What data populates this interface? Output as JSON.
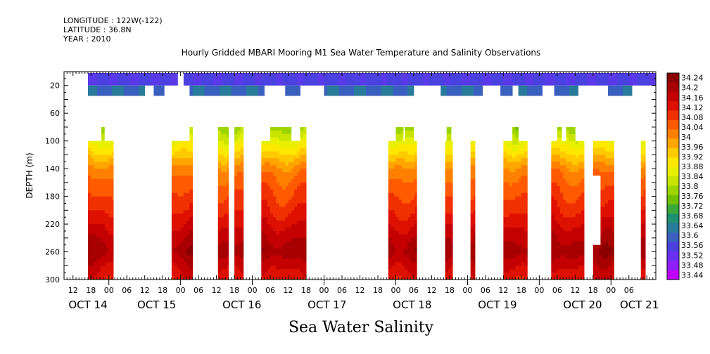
{
  "header": {
    "longitude": "LONGITUDE : 122W(-122)",
    "latitude": "LATITUDE : 36.8N",
    "year": "YEAR : 2010"
  },
  "chart_data": {
    "type": "heatmap",
    "title": "Hourly Gridded MBARI Mooring M1 Sea Water Temperature and Salinity Observations",
    "bottom_title": "Sea Water Salinity",
    "ylabel": "DEPTH (m)",
    "ylim": [
      300,
      0
    ],
    "xlim_hours": [
      0,
      198
    ],
    "y_ticks": [
      "20",
      "60",
      "100",
      "140",
      "180",
      "220",
      "260",
      "300"
    ],
    "y_tick_values": [
      20,
      60,
      100,
      140,
      180,
      220,
      260,
      300
    ],
    "x_hour_labels": [
      "12",
      "18",
      "00",
      "06",
      "12",
      "18",
      "00",
      "06",
      "12",
      "18",
      "00",
      "06",
      "12",
      "18",
      "00",
      "06",
      "12",
      "18",
      "00",
      "06",
      "12",
      "18",
      "00",
      "06",
      "12",
      "18",
      "00",
      "06",
      "12",
      "18",
      "00",
      "06"
    ],
    "x_hour_label_hours": [
      3,
      9,
      15,
      21,
      27,
      33,
      39,
      45,
      51,
      57,
      63,
      69,
      75,
      81,
      87,
      93,
      99,
      105,
      111,
      117,
      123,
      129,
      135,
      141,
      147,
      153,
      159,
      165,
      171,
      177,
      183,
      189
    ],
    "x_day_labels": [
      "OCT 14",
      "OCT 15",
      "OCT 16",
      "OCT 17",
      "OCT 18",
      "OCT 19",
      "OCT 20",
      "OCT 21"
    ],
    "x_day_label_hours": [
      8,
      31,
      59.5,
      88,
      116.5,
      145,
      173.5,
      192.5
    ],
    "colorbar": {
      "levels": [
        "34.24",
        "34.2",
        "34.16",
        "34.12",
        "34.08",
        "34.04",
        "34",
        "33.96",
        "33.92",
        "33.88",
        "33.84",
        "33.8",
        "33.76",
        "33.72",
        "33.68",
        "33.64",
        "33.6",
        "33.56",
        "33.52",
        "33.48",
        "33.44"
      ],
      "colors": [
        "#8b0000",
        "#a80000",
        "#c40000",
        "#de1000",
        "#f03000",
        "#ff5a00",
        "#ff8000",
        "#ffa500",
        "#ffca00",
        "#ffe800",
        "#e8f000",
        "#c8e400",
        "#9cd400",
        "#70c000",
        "#3aa83a",
        "#1f9070",
        "#2a7a9a",
        "#3a5fbf",
        "#4b40e0",
        "#6a30f0",
        "#9020f8",
        "#c000ff"
      ]
    },
    "near_surface_blocks": {
      "depth_range": [
        5,
        35
      ],
      "ranges": [
        [
          8,
          27
        ],
        [
          30,
          33.5
        ],
        [
          38,
          36
        ],
        [
          42,
          67
        ],
        [
          74,
          79
        ],
        [
          87,
          117
        ],
        [
          126,
          140
        ],
        [
          146,
          150
        ],
        [
          152,
          160
        ],
        [
          164,
          172
        ],
        [
          182,
          190
        ]
      ],
      "surface_only_ranges": [
        [
          27,
          30
        ],
        [
          33.5,
          38
        ],
        [
          40,
          42
        ],
        [
          67,
          74
        ],
        [
          79,
          87
        ],
        [
          117,
          126
        ],
        [
          140,
          146
        ],
        [
          150,
          152
        ],
        [
          160,
          164
        ],
        [
          172,
          182
        ],
        [
          190,
          198
        ]
      ]
    },
    "deep_blocks": [
      {
        "start": 8,
        "end": 16.5,
        "top": 100
      },
      {
        "start": 12.5,
        "end": 13.5,
        "top": 80
      },
      {
        "start": 36,
        "end": 43,
        "top": 100
      },
      {
        "start": 42,
        "end": 43,
        "top": 80
      },
      {
        "start": 51.5,
        "end": 55,
        "top": 80
      },
      {
        "start": 57,
        "end": 60,
        "top": 80
      },
      {
        "start": 66,
        "end": 81,
        "top": 100
      },
      {
        "start": 69,
        "end": 76,
        "top": 80
      },
      {
        "start": 79,
        "end": 81,
        "top": 80
      },
      {
        "start": 108.5,
        "end": 118,
        "top": 100
      },
      {
        "start": 111,
        "end": 113.5,
        "top": 80
      },
      {
        "start": 114,
        "end": 117,
        "top": 80
      },
      {
        "start": 128,
        "end": 129.5,
        "top": 80
      },
      {
        "start": 127.5,
        "end": 130,
        "top": 100
      },
      {
        "start": 136,
        "end": 137.5,
        "top": 100
      },
      {
        "start": 147,
        "end": 155,
        "top": 100
      },
      {
        "start": 150,
        "end": 152,
        "top": 80
      },
      {
        "start": 163,
        "end": 174,
        "top": 100
      },
      {
        "start": 165,
        "end": 166.5,
        "top": 80
      },
      {
        "start": 168,
        "end": 171,
        "top": 80
      },
      {
        "start": 177,
        "end": 184,
        "top": 100
      },
      {
        "start": 193,
        "end": 194.5,
        "top": 100
      }
    ],
    "deep_gaps": [
      {
        "start": 176,
        "end": 179.5,
        "top": 150,
        "bottom": 250
      }
    ],
    "deep_profile_depths": [
      80,
      100,
      120,
      140,
      160,
      180,
      200,
      220,
      240,
      260,
      280,
      300
    ],
    "deep_profile_values": [
      33.78,
      33.86,
      33.94,
      34.02,
      34.06,
      34.09,
      34.12,
      34.16,
      34.2,
      34.23,
      34.18,
      34.14
    ]
  }
}
